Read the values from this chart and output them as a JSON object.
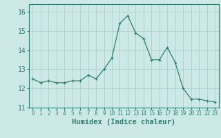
{
  "x": [
    0,
    1,
    2,
    3,
    4,
    5,
    6,
    7,
    8,
    9,
    10,
    11,
    12,
    13,
    14,
    15,
    16,
    17,
    18,
    19,
    20,
    21,
    22,
    23
  ],
  "y": [
    12.5,
    12.3,
    12.4,
    12.3,
    12.3,
    12.4,
    12.4,
    12.7,
    12.5,
    13.0,
    13.6,
    15.4,
    15.8,
    14.9,
    14.6,
    13.5,
    13.5,
    14.15,
    13.35,
    12.0,
    11.45,
    11.45,
    11.35,
    11.3
  ],
  "xlabel": "Humidex (Indice chaleur)",
  "ylim": [
    11.0,
    16.4
  ],
  "xlim": [
    -0.5,
    23.5
  ],
  "yticks": [
    11,
    12,
    13,
    14,
    15,
    16
  ],
  "xticks": [
    0,
    1,
    2,
    3,
    4,
    5,
    6,
    7,
    8,
    9,
    10,
    11,
    12,
    13,
    14,
    15,
    16,
    17,
    18,
    19,
    20,
    21,
    22,
    23
  ],
  "line_color": "#2e7d6e",
  "marker_color": "#2e7d6e",
  "bg_color": "#cce9e7",
  "grid_color": "#aacfcc",
  "axes_color": "#2e7d6e",
  "tick_color": "#2e7d6e",
  "label_color": "#2e7d6e",
  "xlabel_fontsize": 7.5,
  "ytick_fontsize": 7,
  "xtick_fontsize": 5.5
}
